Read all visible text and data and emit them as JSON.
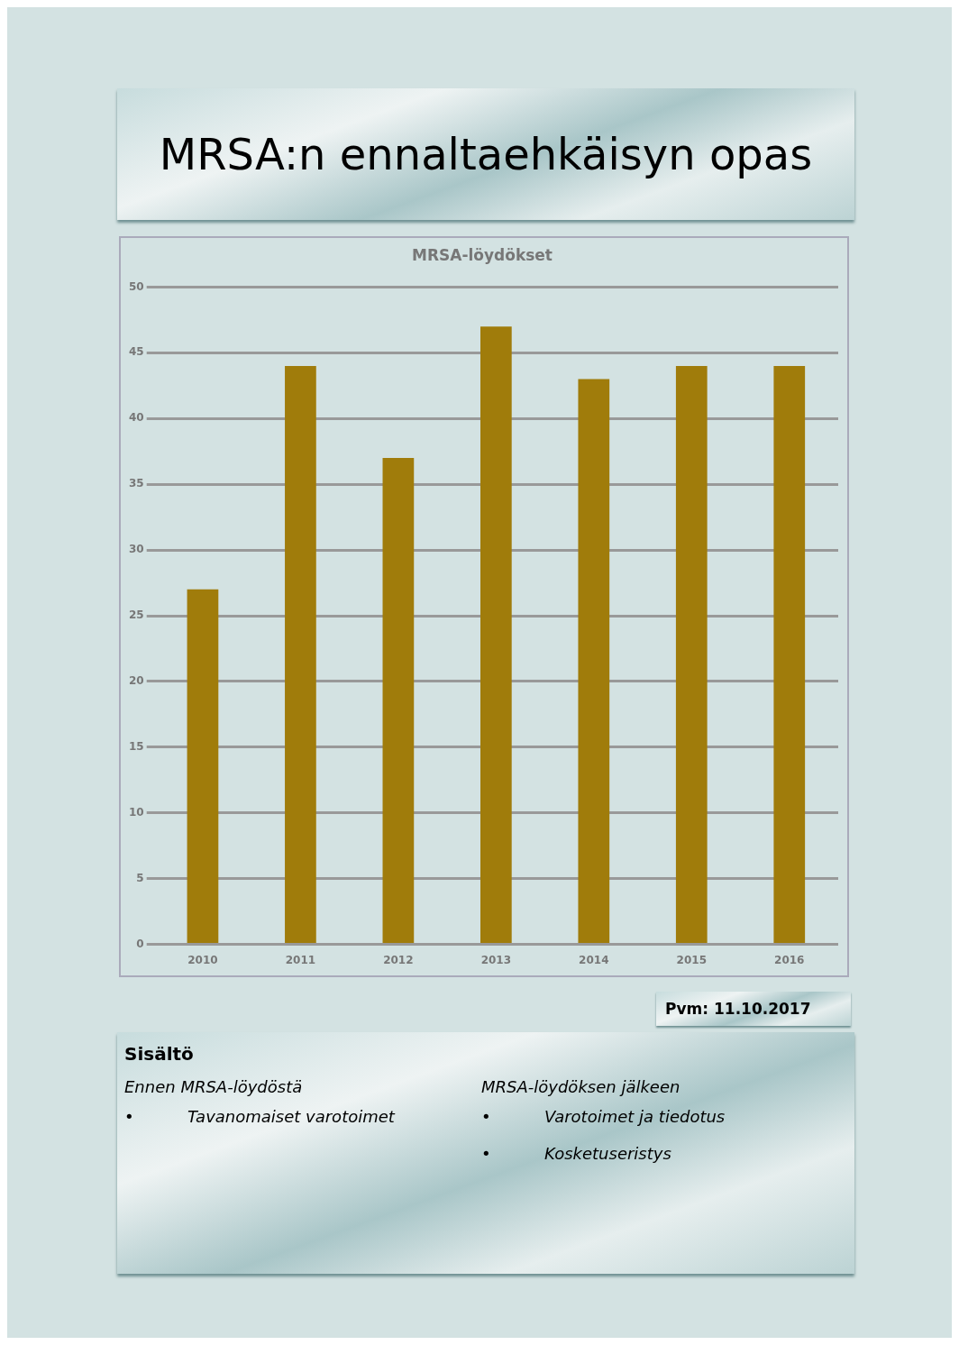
{
  "chart_data": {
    "type": "bar",
    "title": "MRSA-löydökset",
    "categories": [
      "2010",
      "2011",
      "2012",
      "2013",
      "2014",
      "2015",
      "2016"
    ],
    "values": [
      27,
      44,
      37,
      47,
      43,
      44,
      44
    ],
    "color": "#a07c0b",
    "ylim": [
      0,
      50
    ],
    "yticks": [
      0,
      5,
      10,
      15,
      20,
      25,
      30,
      35,
      40,
      45,
      50
    ],
    "grid": "y",
    "legend": false,
    "annotations": [
      "MRSA:n ennaltaehkäisyn opas",
      "Pvm: 11.10.2017",
      "Sisältö",
      "Ennen MRSA-löydöstä",
      "Tavanomaiset varotoimet",
      "MRSA-löydöksen jälkeen",
      "Varotoimet ja tiedotus",
      "Kosketuseristys",
      "•",
      "•",
      "•"
    ]
  }
}
